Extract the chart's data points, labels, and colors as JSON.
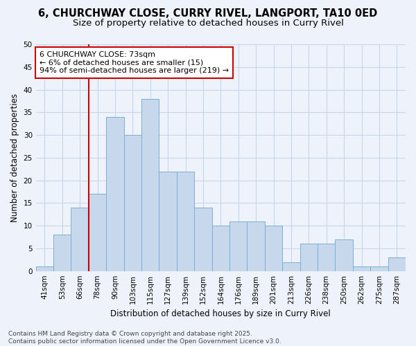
{
  "title_line1": "6, CHURCHWAY CLOSE, CURRY RIVEL, LANGPORT, TA10 0ED",
  "title_line2": "Size of property relative to detached houses in Curry Rivel",
  "xlabel": "Distribution of detached houses by size in Curry Rivel",
  "ylabel": "Number of detached properties",
  "categories": [
    "41sqm",
    "53sqm",
    "66sqm",
    "78sqm",
    "90sqm",
    "103sqm",
    "115sqm",
    "127sqm",
    "139sqm",
    "152sqm",
    "164sqm",
    "176sqm",
    "189sqm",
    "201sqm",
    "213sqm",
    "226sqm",
    "238sqm",
    "250sqm",
    "262sqm",
    "275sqm",
    "287sqm"
  ],
  "values": [
    1,
    8,
    14,
    17,
    34,
    30,
    38,
    22,
    22,
    14,
    10,
    11,
    11,
    10,
    2,
    6,
    6,
    7,
    1,
    1,
    3
  ],
  "bar_color": "#c8d8ec",
  "bar_edge_color": "#7aafd4",
  "grid_color": "#c8d4e8",
  "bg_color": "#eef3fb",
  "plot_bg_color": "#eef3fb",
  "red_line_index": 3,
  "annotation_text": "6 CHURCHWAY CLOSE: 73sqm\n← 6% of detached houses are smaller (15)\n94% of semi-detached houses are larger (219) →",
  "annotation_box_color": "#ffffff",
  "annotation_box_edge": "#cc0000",
  "red_line_color": "#cc0000",
  "ylim": [
    0,
    50
  ],
  "yticks": [
    0,
    5,
    10,
    15,
    20,
    25,
    30,
    35,
    40,
    45,
    50
  ],
  "footnote": "Contains HM Land Registry data © Crown copyright and database right 2025.\nContains public sector information licensed under the Open Government Licence v3.0.",
  "title_fontsize": 10.5,
  "subtitle_fontsize": 9.5,
  "axis_label_fontsize": 8.5,
  "tick_fontsize": 7.5,
  "annotation_fontsize": 8,
  "footnote_fontsize": 6.5
}
